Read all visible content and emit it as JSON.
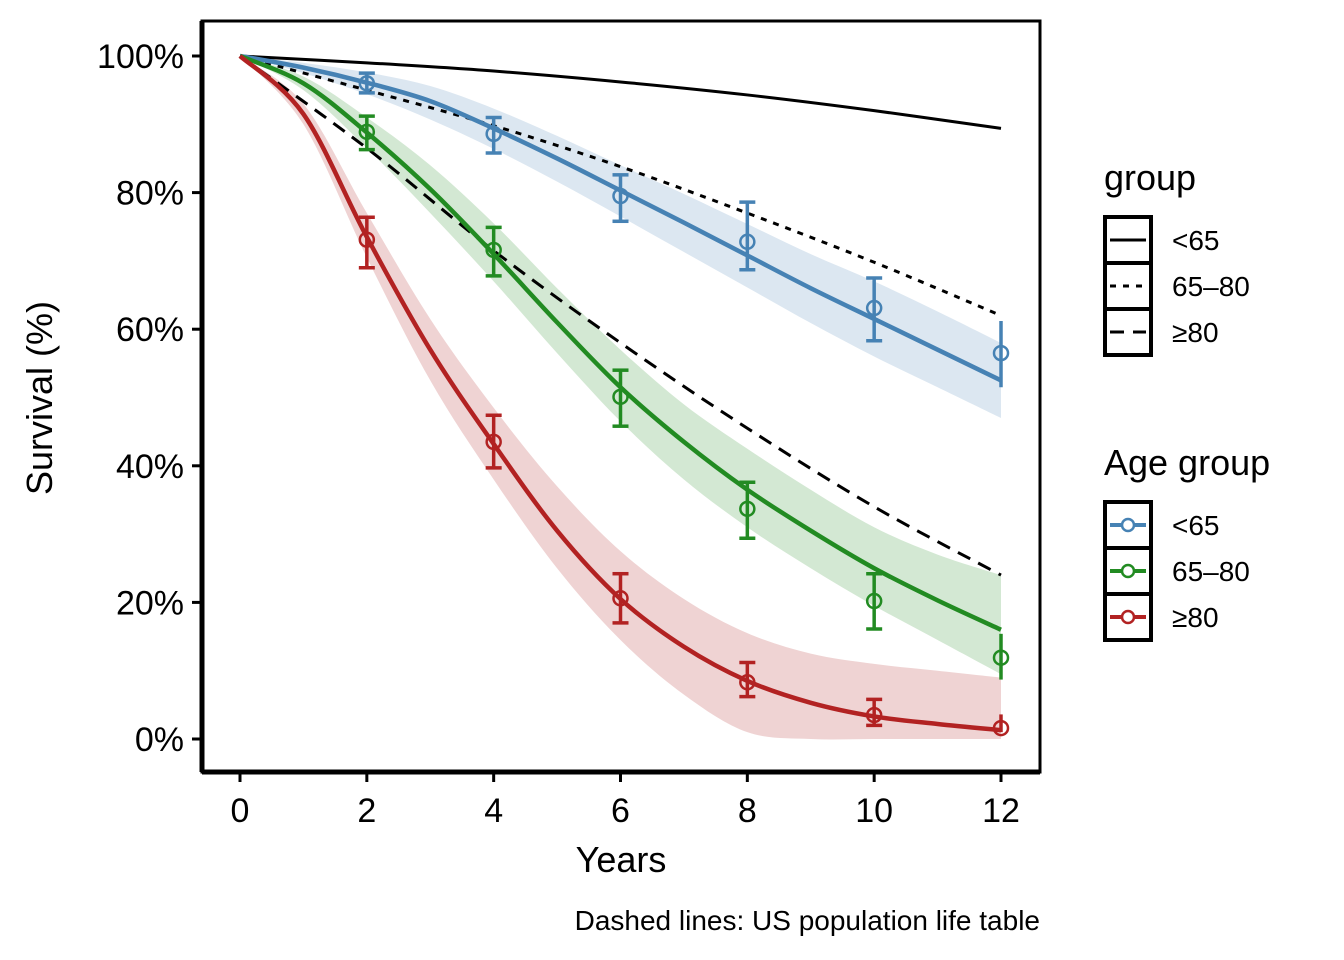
{
  "chart_data": {
    "type": "line",
    "title": "",
    "xlabel": "Years",
    "ylabel": "Survival (%)",
    "caption": "Dashed lines: US population life table",
    "xlim": [
      0,
      12
    ],
    "ylim": [
      0,
      100
    ],
    "x_ticks": [
      0,
      2,
      4,
      6,
      8,
      10,
      12
    ],
    "x_tick_labels": [
      "0",
      "2",
      "4",
      "6",
      "8",
      "10",
      "12"
    ],
    "y_ticks": [
      0,
      20,
      40,
      60,
      80,
      100
    ],
    "y_tick_labels": [
      "0%",
      "20%",
      "40%",
      "60%",
      "80%",
      "100%"
    ],
    "grid": false,
    "legends": [
      {
        "title": "group",
        "position": "right-top",
        "entries": [
          {
            "label": "<65",
            "linetype": "solid"
          },
          {
            "label": "65–80",
            "linetype": "dotted"
          },
          {
            "label": "≥80",
            "linetype": "dashed"
          }
        ]
      },
      {
        "title": "Age group",
        "position": "right-middle",
        "entries": [
          {
            "label": "<65",
            "color": "#4682B4"
          },
          {
            "label": "65–80",
            "color": "#228B22"
          },
          {
            "label": "≥80",
            "color": "#B22222"
          }
        ]
      }
    ],
    "reference_lines": [
      {
        "name": "<65",
        "linetype": "solid",
        "x": [
          0,
          2,
          4,
          6,
          8,
          10,
          12
        ],
        "y": [
          100,
          99.0,
          97.8,
          96.2,
          94.3,
          92.0,
          89.4
        ]
      },
      {
        "name": "65–80",
        "linetype": "dotted",
        "x": [
          0,
          2,
          4,
          6,
          8,
          10,
          12
        ],
        "y": [
          100,
          95.0,
          89.8,
          83.8,
          77.0,
          69.8,
          62.0
        ]
      },
      {
        "name": "≥80",
        "linetype": "dashed",
        "x": [
          0,
          2,
          4,
          6,
          8,
          10,
          12
        ],
        "y": [
          100,
          86.5,
          71.5,
          58.0,
          45.5,
          34.0,
          24.0
        ]
      }
    ],
    "series": [
      {
        "name": "<65",
        "color": "#4682B4",
        "band_color": "#DCE7F1",
        "fit_x": [
          0,
          1,
          2,
          3,
          4,
          5,
          6,
          7,
          8,
          9,
          10,
          11,
          12
        ],
        "fit_y": [
          100,
          98.3,
          96.1,
          93.4,
          89.4,
          85.0,
          80.3,
          75.6,
          70.8,
          66.0,
          61.5,
          57.0,
          52.5
        ],
        "band_lower": [
          100,
          97.5,
          94.4,
          90.7,
          86.4,
          81.6,
          76.5,
          71.3,
          66.1,
          60.9,
          56.0,
          51.5,
          47.0
        ],
        "band_upper": [
          100,
          99.0,
          97.6,
          95.6,
          92.3,
          88.3,
          84.0,
          79.8,
          75.4,
          71.0,
          67.0,
          62.6,
          58.0
        ],
        "points": [
          {
            "x": 2,
            "y": 96.0,
            "lo": 94.6,
            "hi": 97.5
          },
          {
            "x": 4,
            "y": 88.6,
            "lo": 85.8,
            "hi": 91.0
          },
          {
            "x": 6,
            "y": 79.5,
            "lo": 75.8,
            "hi": 82.6
          },
          {
            "x": 8,
            "y": 72.8,
            "lo": 68.7,
            "hi": 78.6
          },
          {
            "x": 10,
            "y": 63.1,
            "lo": 58.3,
            "hi": 67.5
          },
          {
            "x": 12,
            "y": 56.5,
            "lo": 51.5,
            "hi": 61.2
          }
        ]
      },
      {
        "name": "65–80",
        "color": "#228B22",
        "band_color": "#D3E8D3",
        "fit_x": [
          0,
          1,
          2,
          3,
          4,
          5,
          6,
          7,
          8,
          9,
          10,
          11,
          12
        ],
        "fit_y": [
          100,
          96.0,
          88.8,
          80.5,
          71.0,
          61.0,
          51.5,
          43.5,
          36.5,
          30.5,
          25.0,
          20.3,
          16.0
        ],
        "band_lower": [
          100,
          95.0,
          86.5,
          77.0,
          67.0,
          56.5,
          46.5,
          38.0,
          31.0,
          25.0,
          19.5,
          14.5,
          9.5
        ],
        "band_upper": [
          100,
          97.0,
          91.0,
          84.0,
          75.5,
          66.0,
          57.0,
          49.0,
          42.5,
          36.5,
          31.0,
          27.0,
          24.0
        ],
        "points": [
          {
            "x": 2,
            "y": 88.9,
            "lo": 86.3,
            "hi": 91.2
          },
          {
            "x": 4,
            "y": 71.6,
            "lo": 67.8,
            "hi": 74.9
          },
          {
            "x": 6,
            "y": 50.1,
            "lo": 45.8,
            "hi": 54.0
          },
          {
            "x": 8,
            "y": 33.7,
            "lo": 29.4,
            "hi": 37.6
          },
          {
            "x": 10,
            "y": 20.2,
            "lo": 16.1,
            "hi": 24.2
          },
          {
            "x": 12,
            "y": 11.9,
            "lo": 8.7,
            "hi": 15.4
          }
        ]
      },
      {
        "name": "≥80",
        "color": "#B22222",
        "band_color": "#EFD3D3",
        "fit_x": [
          0,
          1,
          2,
          3,
          4,
          5,
          6,
          7,
          8,
          9,
          10,
          11,
          12
        ],
        "fit_y": [
          100,
          91.5,
          73.5,
          57.0,
          43.2,
          30.5,
          20.5,
          13.5,
          8.5,
          5.3,
          3.3,
          2.2,
          1.3
        ],
        "band_lower": [
          100,
          90.0,
          70.5,
          52.5,
          38.0,
          25.0,
          14.5,
          6.5,
          1.0,
          0,
          0,
          0,
          0
        ],
        "band_upper": [
          100,
          93.0,
          77.0,
          61.5,
          48.5,
          37.0,
          27.5,
          20.5,
          15.5,
          12.5,
          11.0,
          10.0,
          9.0
        ],
        "points": [
          {
            "x": 2,
            "y": 73.1,
            "lo": 69.0,
            "hi": 76.4
          },
          {
            "x": 4,
            "y": 43.5,
            "lo": 39.7,
            "hi": 47.4
          },
          {
            "x": 6,
            "y": 20.6,
            "lo": 17.0,
            "hi": 24.2
          },
          {
            "x": 8,
            "y": 8.3,
            "lo": 6.2,
            "hi": 11.2
          },
          {
            "x": 10,
            "y": 3.5,
            "lo": 2.0,
            "hi": 5.8
          },
          {
            "x": 12,
            "y": 1.6,
            "lo": 1.0,
            "hi": 3.6
          }
        ]
      }
    ]
  }
}
